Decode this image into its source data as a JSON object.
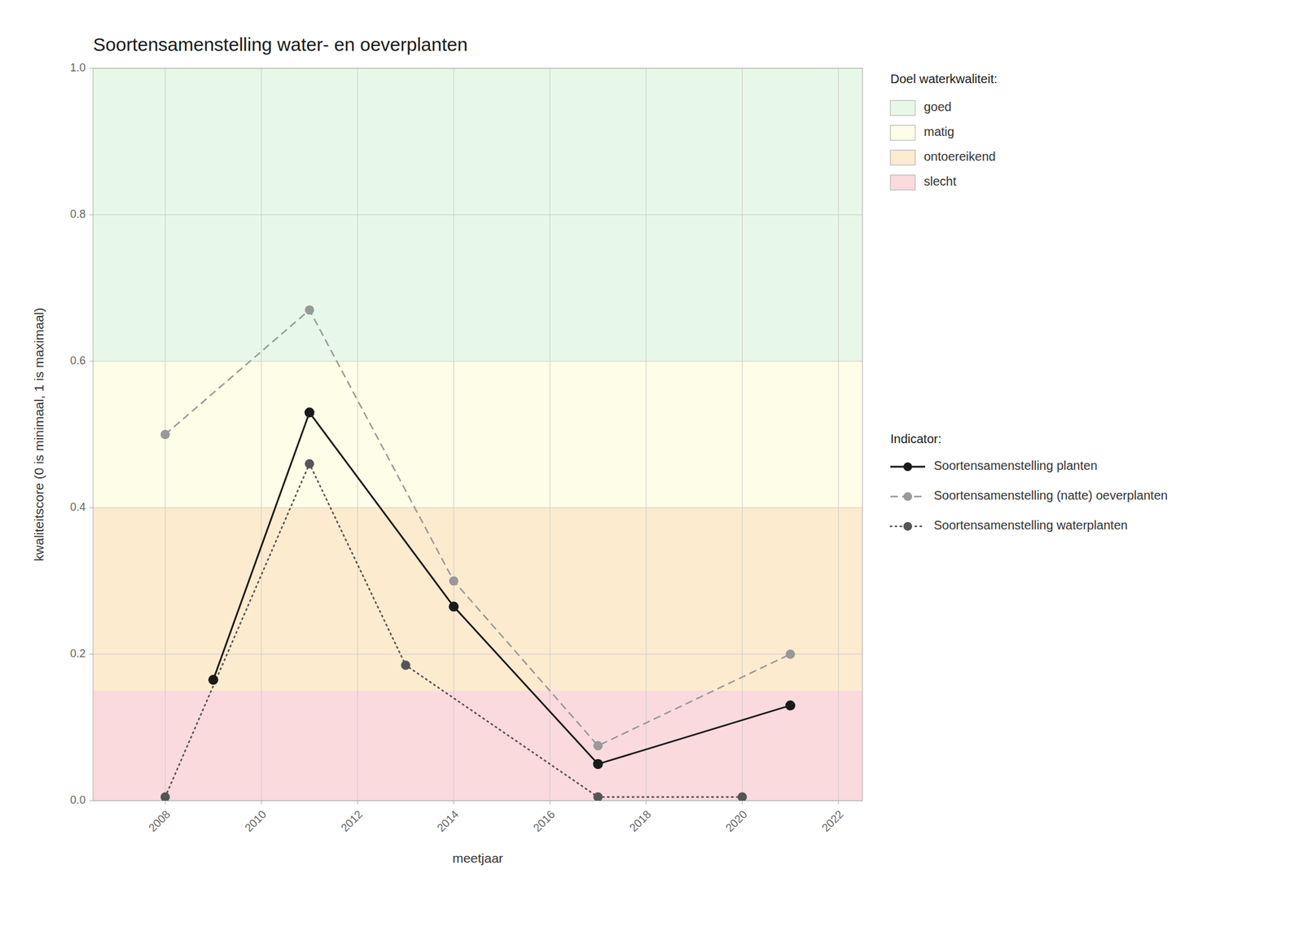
{
  "chart_data": {
    "type": "line",
    "title": "Soortensamenstelling water- en oeverplanten",
    "x_label": "meetjaar",
    "y_label": "kwaliteitscore (0 is minimaal, 1 is maximaal)",
    "xlim": [
      2006.5,
      2022.5
    ],
    "ylim": [
      0.0,
      1.0
    ],
    "xticks": [
      2008,
      2010,
      2012,
      2014,
      2016,
      2018,
      2020,
      2022
    ],
    "yticks": [
      {
        "value": 0.0,
        "label": "0.0"
      },
      0.2,
      0.4,
      0.6,
      0.8,
      {
        "value": 1.0,
        "label": "1.0"
      }
    ],
    "grid": true,
    "legend": "right",
    "band_legend_title": "Doel waterkwaliteit:",
    "legend_title": "Indicator:",
    "bands": [
      {
        "from": 0.0,
        "to": 0.15,
        "color": "#FADADD",
        "label": "slecht"
      },
      {
        "from": 0.15,
        "to": 0.4,
        "color": "#FDEBD0",
        "label": "ontoereikend"
      },
      {
        "from": 0.4,
        "to": 0.6,
        "color": "#FEFDE7",
        "label": "matig"
      },
      {
        "from": 0.6,
        "to": 1.0,
        "color": "#E8F8E8",
        "label": "goed"
      }
    ],
    "series": [
      {
        "name": "Soortensamenstelling planten",
        "color": "#1a1a1a",
        "line_style": "solid",
        "marker": "circle",
        "x": [
          2009,
          2011,
          2014,
          2017,
          2021
        ],
        "values": [
          0.165,
          0.53,
          0.265,
          0.05,
          0.13
        ]
      },
      {
        "name": "Soortensamenstelling (natte) oeverplanten",
        "color": "#999999",
        "line_style": "dashed",
        "marker": "circle",
        "x": [
          2008,
          2011,
          2014,
          2017,
          2021
        ],
        "values": [
          0.5,
          0.67,
          0.3,
          0.075,
          0.2
        ]
      },
      {
        "name": "Soortensamenstelling waterplanten",
        "color": "#555555",
        "line_style": "dotted",
        "marker": "circle",
        "x": [
          2008,
          2011,
          2013,
          2017,
          2020
        ],
        "values": [
          0.005,
          0.46,
          0.185,
          0.005,
          0.005
        ]
      }
    ]
  }
}
